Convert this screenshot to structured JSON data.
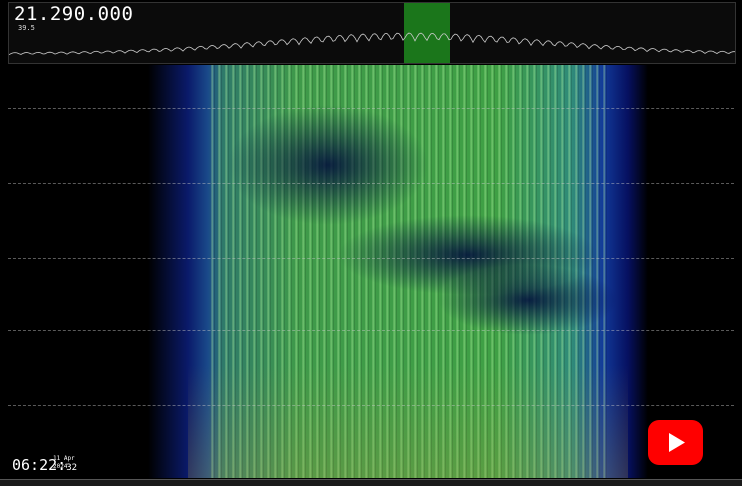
{
  "header": {
    "frequency": "21.290.000",
    "level": "39.5"
  },
  "clock": {
    "time": "06:22:",
    "seconds": "32",
    "date": "11 Apr",
    "year": "2024"
  }
}
